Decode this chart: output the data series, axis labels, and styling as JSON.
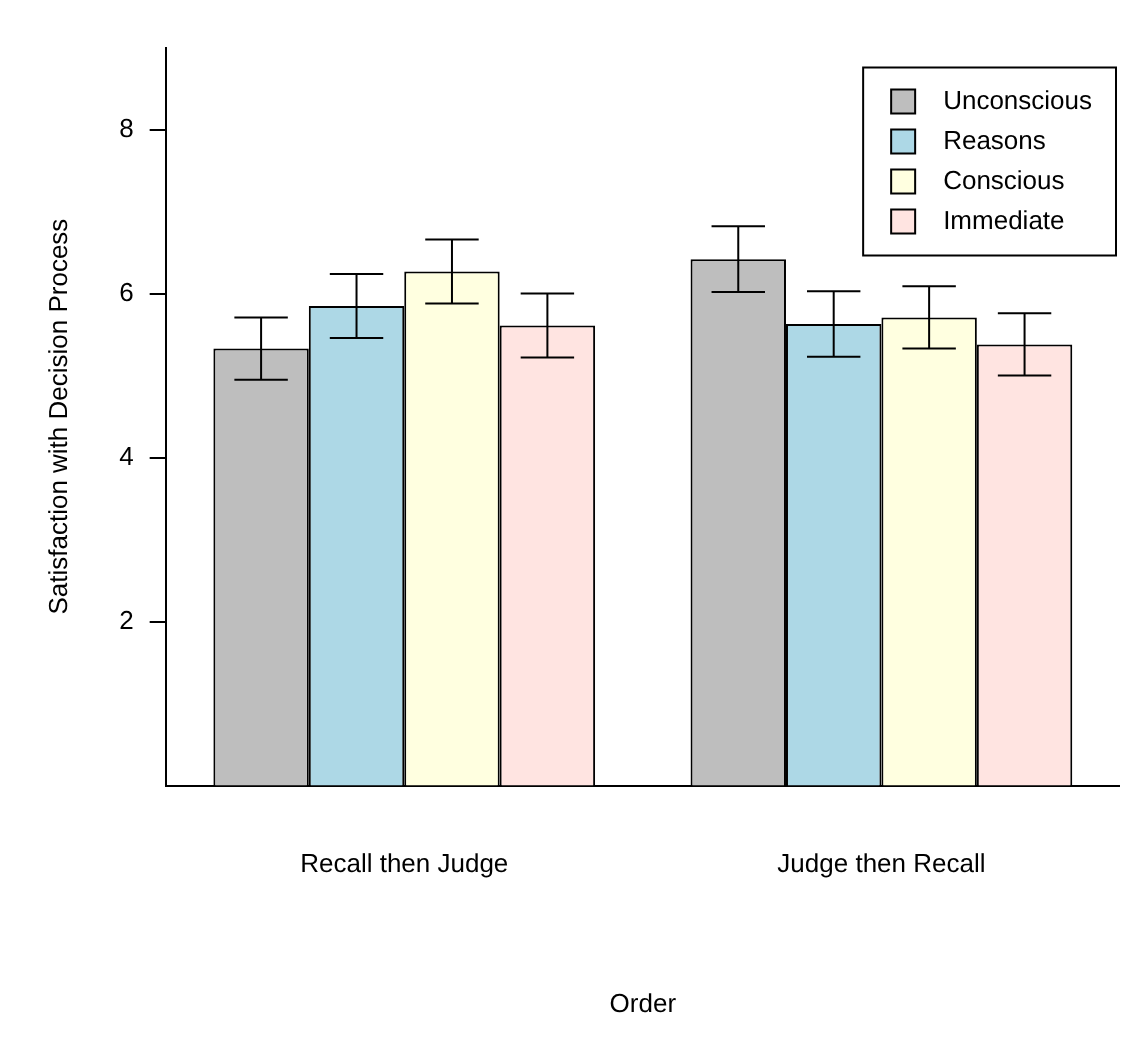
{
  "chart_data": {
    "type": "bar",
    "xlabel": "Order",
    "ylabel": "Satisfaction with Decision Process",
    "categories": [
      "Recall then Judge",
      "Judge then Recall"
    ],
    "series": [
      {
        "name": "Unconscious",
        "color": "#bebebe",
        "values": [
          5.33,
          6.42
        ],
        "errors": [
          0.38,
          0.4
        ]
      },
      {
        "name": "Reasons",
        "color": "#add8e6",
        "values": [
          5.85,
          5.63
        ],
        "errors": [
          0.39,
          0.4
        ]
      },
      {
        "name": "Conscious",
        "color": "#ffffe0",
        "values": [
          6.27,
          5.71
        ],
        "errors": [
          0.39,
          0.38
        ]
      },
      {
        "name": "Immediate",
        "color": "#ffe4e1",
        "values": [
          5.61,
          5.38
        ],
        "errors": [
          0.39,
          0.38
        ]
      }
    ],
    "ylim": [
      0,
      9
    ],
    "yticks": [
      2,
      4,
      6,
      8
    ],
    "grid": false,
    "legend": "top right"
  }
}
